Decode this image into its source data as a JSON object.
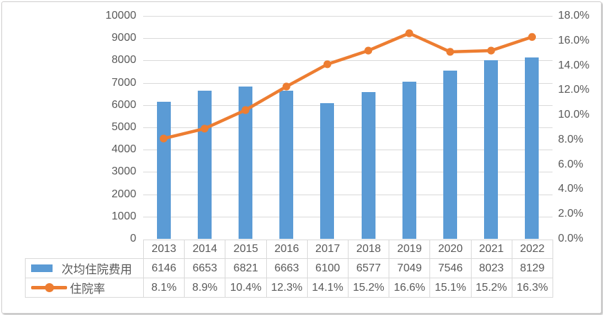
{
  "chart_data": {
    "type": "combo-bar-line-with-data-table",
    "categories": [
      "2013",
      "2014",
      "2015",
      "2016",
      "2017",
      "2018",
      "2019",
      "2020",
      "2021",
      "2022"
    ],
    "series": [
      {
        "name": "次均住院费用",
        "type": "bar",
        "axis": "left",
        "color": "#5B9BD5",
        "values": [
          6146,
          6653,
          6821,
          6663,
          6100,
          6577,
          7049,
          7546,
          8023,
          8129
        ],
        "table_labels": [
          "6146",
          "6653",
          "6821",
          "6663",
          "6100",
          "6577",
          "7049",
          "7546",
          "8023",
          "8129"
        ]
      },
      {
        "name": "住院率",
        "type": "line",
        "axis": "right",
        "color": "#ED7D31",
        "values": [
          8.1,
          8.9,
          10.4,
          12.3,
          14.1,
          15.2,
          16.6,
          15.1,
          15.2,
          16.3
        ],
        "table_labels": [
          "8.1%",
          "8.9%",
          "10.4%",
          "12.3%",
          "14.1%",
          "15.2%",
          "16.6%",
          "15.1%",
          "15.2%",
          "16.3%"
        ]
      }
    ],
    "left_axis": {
      "min": 0,
      "max": 10000,
      "step": 1000,
      "tick_labels": [
        "0",
        "1000",
        "2000",
        "3000",
        "4000",
        "5000",
        "6000",
        "7000",
        "8000",
        "9000",
        "10000"
      ]
    },
    "right_axis": {
      "min": 0,
      "max": 18,
      "step": 2,
      "tick_labels": [
        "0.0%",
        "2.0%",
        "4.0%",
        "6.0%",
        "8.0%",
        "10.0%",
        "12.0%",
        "14.0%",
        "16.0%",
        "18.0%"
      ]
    },
    "grid": true,
    "legend_position": "table-left-column"
  },
  "colors": {
    "bar": "#5B9BD5",
    "line": "#ED7D31",
    "gridline": "#D9D9D9",
    "axis_text": "#595959",
    "table_text": "#595959",
    "table_border": "#D9D9D9",
    "background": "#FFFFFF"
  }
}
